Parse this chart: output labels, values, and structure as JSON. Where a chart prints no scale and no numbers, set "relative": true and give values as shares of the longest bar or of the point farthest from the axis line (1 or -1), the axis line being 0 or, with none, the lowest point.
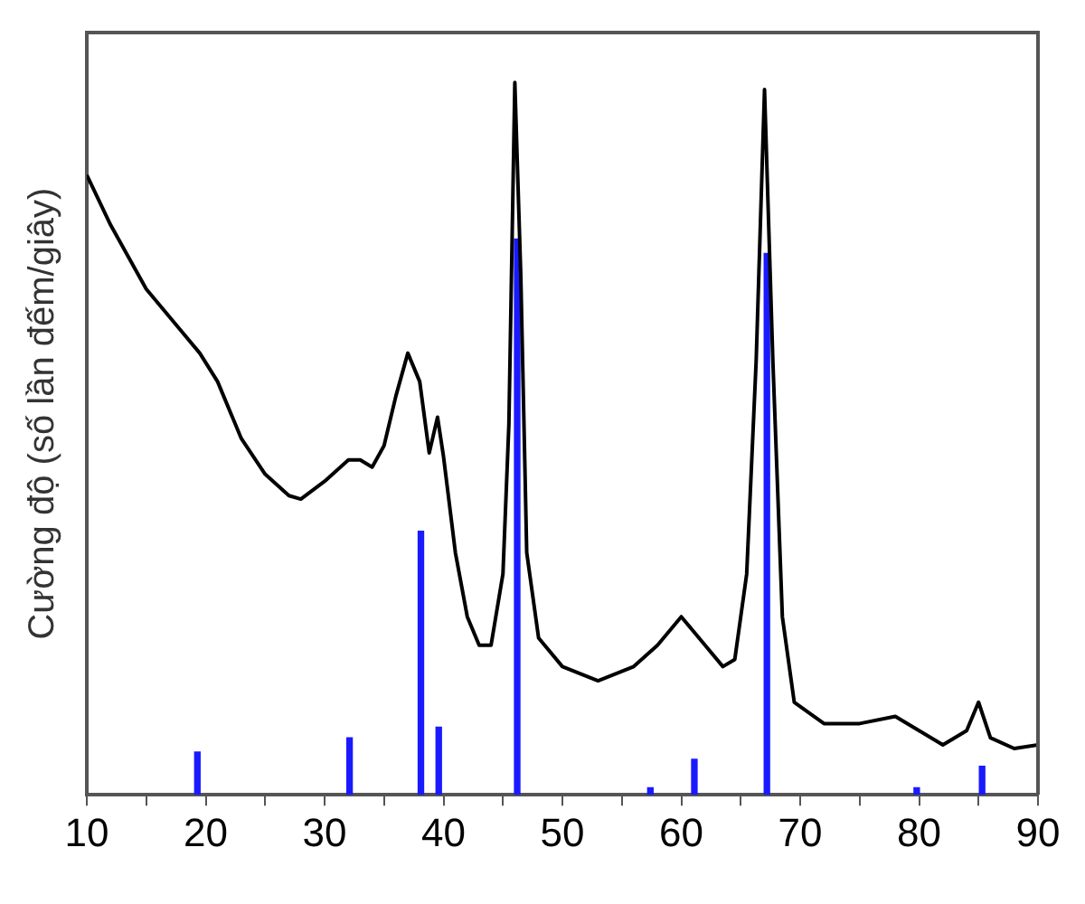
{
  "chart_data": {
    "type": "line",
    "ylabel": "Cường độ (số lần đếm/giây)",
    "relative": true,
    "xlim": [
      10,
      90
    ],
    "xticks": [
      10,
      {
        "value": 15,
        "label": null
      },
      20,
      {
        "value": 25,
        "label": null
      },
      30,
      {
        "value": 35,
        "label": null
      },
      40,
      {
        "value": 45,
        "label": null
      },
      50,
      {
        "value": 55,
        "label": null
      },
      60,
      {
        "value": 65,
        "label": null
      },
      70,
      {
        "value": 75,
        "label": null
      },
      80,
      {
        "value": 85,
        "label": null
      },
      90
    ],
    "grid": false,
    "legend": false,
    "series": [
      {
        "color": "#000000",
        "x": [
          10,
          12,
          15,
          18,
          19.5,
          21,
          23,
          25,
          27,
          28,
          30,
          32,
          33,
          34,
          35,
          36,
          37,
          38,
          38.8,
          39.5,
          40,
          41,
          42,
          43,
          44,
          45,
          45.5,
          46,
          46.5,
          47,
          48,
          50,
          53,
          56,
          58,
          60,
          61,
          62,
          63.5,
          64.5,
          65.5,
          66.3,
          67,
          67.7,
          68.5,
          69.5,
          72,
          75,
          78,
          80,
          82,
          84,
          85,
          86,
          88,
          90
        ],
        "values": [
          0.87,
          0.8,
          0.71,
          0.65,
          0.62,
          0.58,
          0.5,
          0.45,
          0.42,
          0.415,
          0.44,
          0.47,
          0.47,
          0.46,
          0.49,
          0.56,
          0.62,
          0.58,
          0.48,
          0.53,
          0.475,
          0.34,
          0.25,
          0.21,
          0.21,
          0.31,
          0.52,
          1.0,
          0.73,
          0.34,
          0.22,
          0.18,
          0.16,
          0.18,
          0.21,
          0.25,
          0.23,
          0.21,
          0.18,
          0.19,
          0.31,
          0.61,
          0.99,
          0.61,
          0.25,
          0.13,
          0.1,
          0.1,
          0.11,
          0.09,
          0.07,
          0.09,
          0.13,
          0.08,
          0.065,
          0.07
        ]
      },
      {
        "type": "bar",
        "color": "#1a1aff",
        "x": [
          19.3,
          32.1,
          38.1,
          39.6,
          46.2,
          57.4,
          61.1,
          67.2,
          79.8,
          85.3
        ],
        "values": [
          0.06,
          0.08,
          0.37,
          0.095,
          0.78,
          0.01,
          0.05,
          0.76,
          0.01,
          0.04
        ]
      }
    ]
  }
}
